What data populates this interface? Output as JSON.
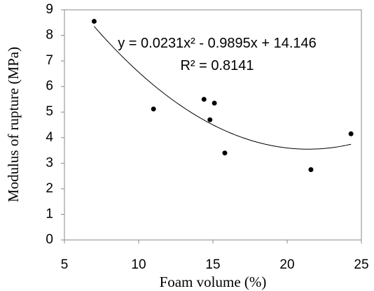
{
  "chart_data": {
    "type": "scatter",
    "x_label": "Foam volume (%)",
    "y_label": "Modulus of rupture (MPa)",
    "x": [
      7,
      11,
      14.4,
      14.8,
      15.1,
      15.8,
      21.6,
      24.3
    ],
    "values": [
      8.55,
      5.12,
      5.5,
      4.7,
      5.35,
      3.4,
      2.75,
      4.15
    ],
    "color": "#000000",
    "xlim": [
      5,
      25
    ],
    "xticks": [
      5,
      10,
      15,
      20,
      25
    ],
    "ylim": [
      0,
      9
    ],
    "yticks": [
      0,
      1,
      2,
      3,
      4,
      5,
      6,
      7,
      8,
      9
    ],
    "trendline": {
      "order": 2,
      "coefficients": [
        0.0231,
        -0.9895,
        14.146
      ]
    },
    "annotations": [
      "y = 0.0231x² - 0.9895x + 14.146",
      "R² = 0.8141"
    ]
  }
}
